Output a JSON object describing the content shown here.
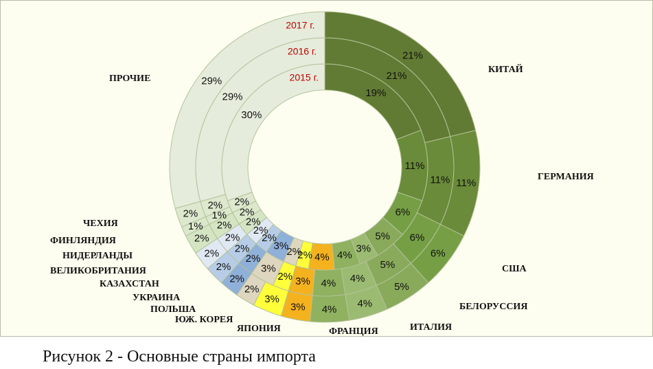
{
  "caption": "Рисунок 2 - Основные страны импорта",
  "chart_data": {
    "type": "doughnut",
    "rings": [
      "2015 г.",
      "2016 г.",
      "2017 г."
    ],
    "categories": [
      "КИТАЙ",
      "ГЕРМАНИЯ",
      "США",
      "БЕЛОРУССИЯ",
      "ИТАЛИЯ",
      "ФРАНЦИЯ",
      "ЯПОНИЯ",
      "ЮЖ. КОРЕЯ",
      "ПОЛЬША",
      "УКРАИНА",
      "КАЗАХСТАН",
      "ВЕЛИКОБРИТАНИЯ",
      "НИДЕРЛАНДЫ",
      "ФИНЛЯНДИЯ",
      "ЧЕХИЯ",
      "ПРОЧИЕ"
    ],
    "series": [
      {
        "name": "2015 г.",
        "values": [
          19,
          11,
          6,
          5,
          3,
          4,
          4,
          2,
          2,
          3,
          2,
          2,
          2,
          2,
          2,
          30
        ]
      },
      {
        "name": "2016 г.",
        "values": [
          21,
          11,
          6,
          5,
          4,
          4,
          3,
          2,
          3,
          2,
          2,
          2,
          2,
          1,
          2,
          29
        ]
      },
      {
        "name": "2017 г.",
        "values": [
          21,
          11,
          6,
          5,
          4,
          4,
          3,
          3,
          2,
          2,
          2,
          2,
          2,
          1,
          2,
          29
        ]
      }
    ],
    "colors": [
      "#627b34",
      "#6a8b39",
      "#769f45",
      "#89aa5b",
      "#9cbb72",
      "#8fb160",
      "#f5b21f",
      "#ffff3a",
      "#ded6bf",
      "#8fb0d8",
      "#b7cde7",
      "#e0e8f3",
      "#d4e5c4",
      "#dbe8cc",
      "#dde8ce",
      "#e5ecdc"
    ]
  }
}
